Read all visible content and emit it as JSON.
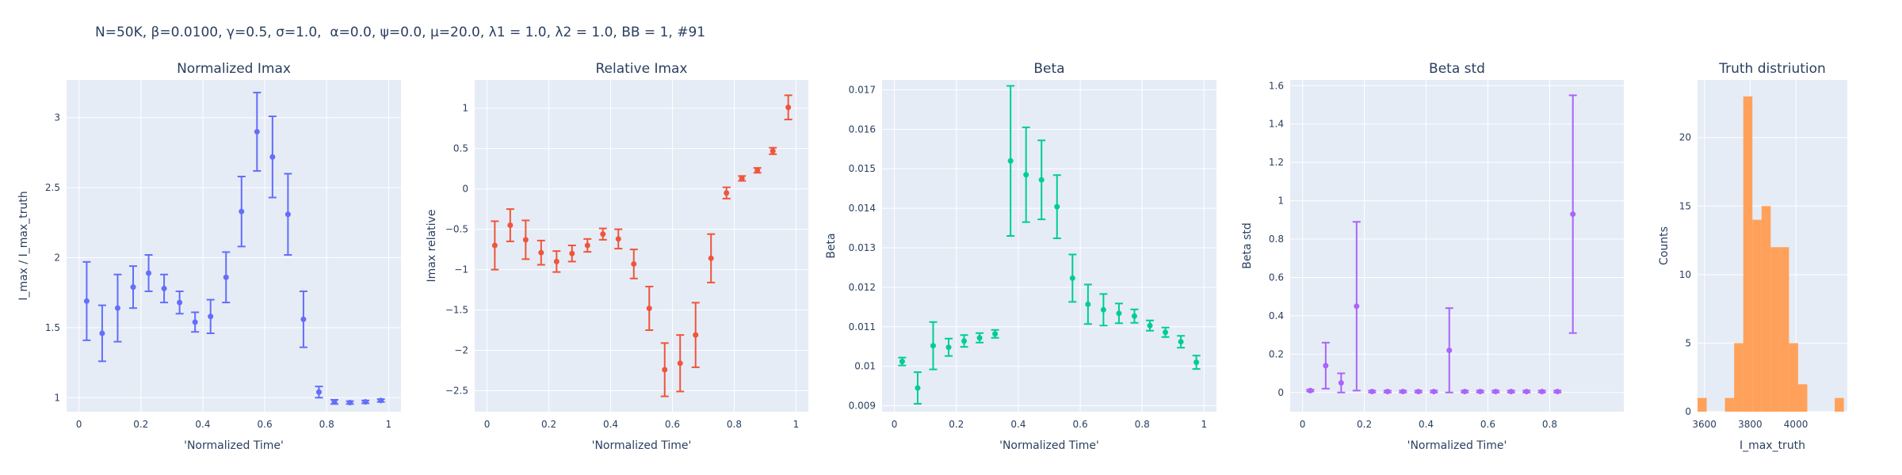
{
  "title": "N=50K, β=0.0100, γ=0.5, σ=1.0,  α=0.0, ψ=0.0, μ=20.0, λ1 = 1.0, λ2 = 1.0, BB = 1, #91",
  "chart_data": [
    {
      "type": "scatter",
      "title": "Normalized Imax",
      "xlabel": "'Normalized Time'",
      "ylabel": "I_max / I_max_truth",
      "color": "#636efa",
      "xlim": [
        -0.04,
        1.04
      ],
      "ylim": [
        0.9,
        3.27
      ],
      "xticks": [
        0,
        0.2,
        0.4,
        0.6,
        0.8,
        1
      ],
      "xticklabels": [
        "0",
        "0.2",
        "0.4",
        "0.6",
        "0.8",
        "1"
      ],
      "yticks": [
        1,
        1.5,
        2,
        2.5,
        3
      ],
      "yticklabels": [
        "1",
        "1.5",
        "2",
        "2.5",
        "3"
      ],
      "x": [
        0.025,
        0.075,
        0.125,
        0.175,
        0.225,
        0.275,
        0.325,
        0.375,
        0.425,
        0.475,
        0.525,
        0.575,
        0.625,
        0.675,
        0.725,
        0.775,
        0.825,
        0.875,
        0.925,
        0.975
      ],
      "y": [
        1.69,
        1.46,
        1.64,
        1.79,
        1.89,
        1.78,
        1.68,
        1.54,
        1.58,
        1.86,
        2.33,
        2.9,
        2.72,
        2.31,
        1.56,
        1.04,
        0.97,
        0.965,
        0.97,
        0.98
      ],
      "err": [
        0.28,
        0.2,
        0.24,
        0.15,
        0.13,
        0.1,
        0.08,
        0.07,
        0.12,
        0.18,
        0.25,
        0.28,
        0.29,
        0.29,
        0.2,
        0.04,
        0.015,
        0.01,
        0.01,
        0.01
      ]
    },
    {
      "type": "scatter",
      "title": "Relative Imax",
      "xlabel": "'Normalized Time'",
      "ylabel": "Imax relative",
      "color": "#ef553b",
      "xlim": [
        -0.04,
        1.04
      ],
      "ylim": [
        -2.76,
        1.35
      ],
      "xticks": [
        0,
        0.2,
        0.4,
        0.6,
        0.8,
        1
      ],
      "xticklabels": [
        "0",
        "0.2",
        "0.4",
        "0.6",
        "0.8",
        "1"
      ],
      "yticks": [
        -2.5,
        -2,
        -1.5,
        -1,
        -0.5,
        0,
        0.5,
        1
      ],
      "yticklabels": [
        "−2.5",
        "−2",
        "−1.5",
        "−1",
        "−0.5",
        "0",
        "0.5",
        "1"
      ],
      "x": [
        0.025,
        0.075,
        0.125,
        0.175,
        0.225,
        0.275,
        0.325,
        0.375,
        0.425,
        0.475,
        0.525,
        0.575,
        0.625,
        0.675,
        0.725,
        0.775,
        0.825,
        0.875,
        0.925,
        0.975
      ],
      "y": [
        -0.7,
        -0.45,
        -0.63,
        -0.79,
        -0.9,
        -0.8,
        -0.7,
        -0.56,
        -0.62,
        -0.93,
        -1.48,
        -2.24,
        -2.16,
        -1.81,
        -0.86,
        -0.05,
        0.13,
        0.23,
        0.47,
        1.01
      ],
      "err": [
        0.3,
        0.2,
        0.24,
        0.15,
        0.13,
        0.1,
        0.08,
        0.07,
        0.12,
        0.18,
        0.27,
        0.33,
        0.35,
        0.4,
        0.3,
        0.07,
        0.03,
        0.03,
        0.04,
        0.15
      ]
    },
    {
      "type": "scatter",
      "title": "Beta",
      "xlabel": "'Normalized Time'",
      "ylabel": "Beta",
      "color": "#00cc96",
      "xlim": [
        -0.04,
        1.04
      ],
      "ylim": [
        0.00885,
        0.01725
      ],
      "xticks": [
        0,
        0.2,
        0.4,
        0.6,
        0.8,
        1
      ],
      "xticklabels": [
        "0",
        "0.2",
        "0.4",
        "0.6",
        "0.8",
        "1"
      ],
      "yticks": [
        0.009,
        0.01,
        0.011,
        0.012,
        0.013,
        0.014,
        0.015,
        0.016,
        0.017
      ],
      "yticklabels": [
        "0.009",
        "0.01",
        "0.011",
        "0.012",
        "0.013",
        "0.014",
        "0.015",
        "0.016",
        "0.017"
      ],
      "x": [
        0.025,
        0.075,
        0.125,
        0.175,
        0.225,
        0.275,
        0.325,
        0.375,
        0.425,
        0.475,
        0.525,
        0.575,
        0.625,
        0.675,
        0.725,
        0.775,
        0.825,
        0.875,
        0.925,
        0.975
      ],
      "y": [
        0.01012,
        0.00945,
        0.01052,
        0.01048,
        0.01064,
        0.01072,
        0.01082,
        0.0152,
        0.01485,
        0.01472,
        0.01404,
        0.01223,
        0.01157,
        0.01143,
        0.01134,
        0.01127,
        0.01103,
        0.01086,
        0.01062,
        0.0101
      ],
      "err": [
        0.0001,
        0.0004,
        0.0006,
        0.00022,
        0.00015,
        0.00012,
        0.0001,
        0.0019,
        0.0012,
        0.001,
        0.0008,
        0.0006,
        0.0005,
        0.0004,
        0.00025,
        0.00017,
        0.00013,
        0.00012,
        0.00015,
        0.00017
      ]
    },
    {
      "type": "scatter",
      "title": "Beta std",
      "xlabel": "'Normalized Time'",
      "ylabel": "Beta std",
      "color": "#ab63fa",
      "xlim": [
        -0.04,
        1.04
      ],
      "ylim": [
        -0.1,
        1.63
      ],
      "xticks": [
        0,
        0.2,
        0.4,
        0.6,
        0.8
      ],
      "xticklabels": [
        "0",
        "0.2",
        "0.4",
        "0.6",
        "0.8"
      ],
      "yticks": [
        0,
        0.2,
        0.4,
        0.6,
        0.8,
        1,
        1.2,
        1.4,
        1.6
      ],
      "yticklabels": [
        "0",
        "0.2",
        "0.4",
        "0.6",
        "0.8",
        "1",
        "1.2",
        "1.4",
        "1.6"
      ],
      "x": [
        0.025,
        0.075,
        0.125,
        0.175,
        0.225,
        0.275,
        0.325,
        0.375,
        0.425,
        0.475,
        0.525,
        0.575,
        0.625,
        0.675,
        0.725,
        0.775,
        0.825,
        0.875
      ],
      "y": [
        0.01,
        0.14,
        0.05,
        0.45,
        0.005,
        0.005,
        0.005,
        0.005,
        0.005,
        0.22,
        0.005,
        0.005,
        0.005,
        0.005,
        0.005,
        0.005,
        0.005,
        0.93
      ],
      "err": [
        0.005,
        0.12,
        0.05,
        0.44,
        0.005,
        0.005,
        0.005,
        0.005,
        0.005,
        0.22,
        0.005,
        0.005,
        0.005,
        0.005,
        0.005,
        0.005,
        0.005,
        0.62
      ]
    },
    {
      "type": "bar",
      "title": "Truth distriution",
      "xlabel": "I_max_truth",
      "ylabel": "Counts",
      "color": "#ffa15a",
      "xlim": [
        3570,
        4225
      ],
      "ylim": [
        0,
        24.2
      ],
      "xticks": [
        3600,
        3800,
        4000
      ],
      "xticklabels": [
        "3600",
        "3800",
        "4000"
      ],
      "yticks": [
        0,
        5,
        10,
        15,
        20
      ],
      "yticklabels": [
        "0",
        "5",
        "10",
        "15",
        "20"
      ],
      "bin_width": 40,
      "bin_starts": [
        3570,
        3610,
        3650,
        3690,
        3730,
        3770,
        3810,
        3850,
        3890,
        3930,
        3970,
        4010,
        4050,
        4090,
        4130,
        4170
      ],
      "values": [
        1,
        0,
        0,
        1,
        5,
        23,
        14,
        15,
        12,
        12,
        5,
        2,
        0,
        0,
        0,
        1
      ]
    }
  ]
}
